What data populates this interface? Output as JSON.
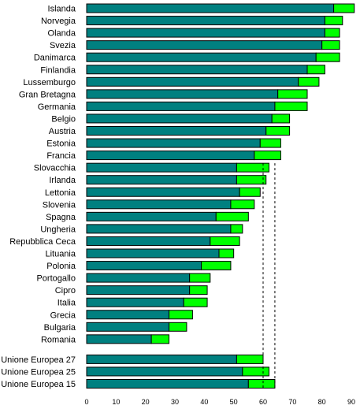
{
  "chart_data": {
    "type": "bar",
    "orientation": "horizontal",
    "stacked": true,
    "categories": [
      "Islanda",
      "Norvegia",
      "Olanda",
      "Svezia",
      "Danimarca",
      "Finlandia",
      "Lussemburgo",
      "Gran Bretagna",
      "Germania",
      "Belgio",
      "Austria",
      "Estonia",
      "Francia",
      "Slovacchia",
      "Irlanda",
      "Lettonia",
      "Slovenia",
      "Spagna",
      "Ungheria",
      "Repubblica Ceca",
      "Lituania",
      "Polonia",
      "Portogallo",
      "Cipro",
      "Italia",
      "Grecia",
      "Bulgaria",
      "Romania",
      "Unione Europea 27",
      "Unione Europea 25",
      "Unione Europea 15"
    ],
    "series": [
      {
        "color": "#008080",
        "values": [
          84,
          81,
          81,
          80,
          78,
          75,
          72,
          65,
          64,
          63,
          61,
          59,
          57,
          51,
          51,
          52,
          49,
          44,
          49,
          42,
          45,
          39,
          35,
          35,
          33,
          28,
          28,
          22,
          51,
          53,
          55
        ]
      },
      {
        "color": "#00ff00",
        "values": [
          7,
          6,
          5,
          6,
          8,
          6,
          7,
          10,
          11,
          6,
          8,
          7,
          9,
          11,
          10,
          7,
          8,
          11,
          4,
          10,
          5,
          10,
          7,
          6,
          8,
          8,
          6,
          6,
          9,
          9,
          9
        ]
      }
    ],
    "reference_lines": [
      {
        "value": 60,
        "style": "dashed",
        "color": "#000000"
      },
      {
        "value": 64,
        "style": "dashed",
        "color": "#000000"
      }
    ],
    "xlim": [
      0,
      90
    ],
    "xticks": [
      0,
      10,
      20,
      30,
      40,
      50,
      60,
      70,
      80,
      90
    ],
    "title": "",
    "xlabel": "",
    "ylabel": "",
    "grid": false,
    "legend": "none"
  }
}
